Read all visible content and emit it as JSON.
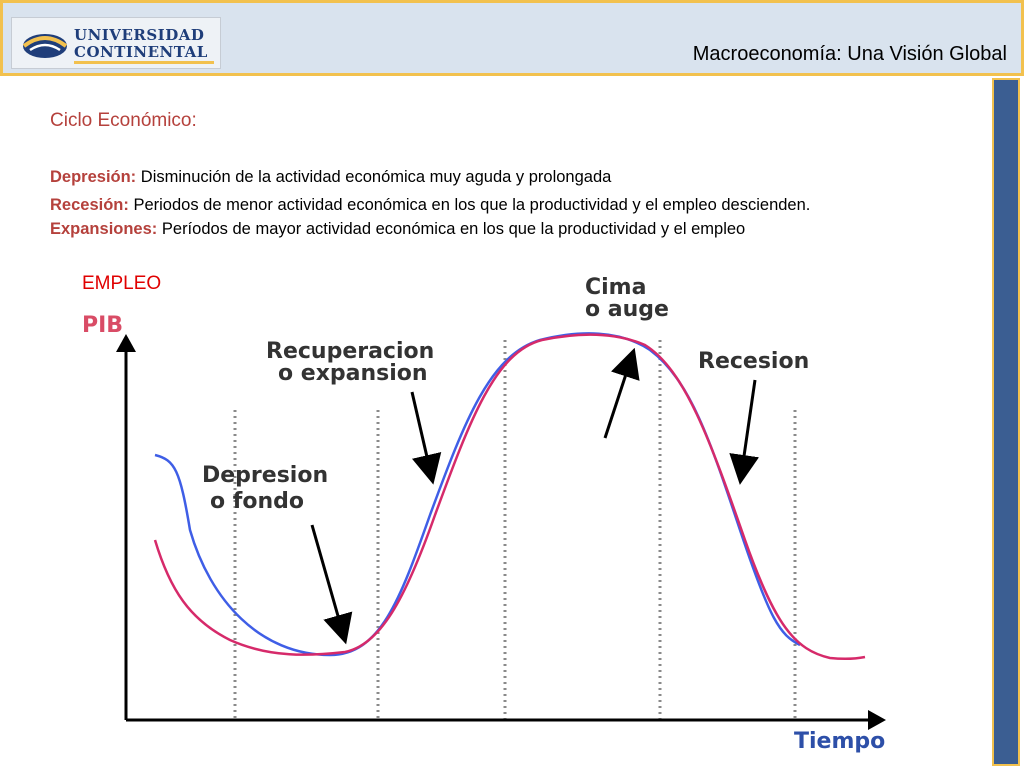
{
  "header": {
    "logo_line1": "UNIVERSIDAD",
    "logo_line2": "CONTINENTAL",
    "deck_title": "Macroeconomía:  Una Visión Global"
  },
  "content": {
    "section_title": "Ciclo Económico:",
    "definitions": [
      {
        "term": "Depresión:",
        "text": " Disminución de la actividad económica muy aguda y prolongada"
      },
      {
        "term": "Recesión:",
        "text": " Periodos de menor actividad económica en los que la productividad y el empleo descienden."
      },
      {
        "term": "Expansiones:",
        "text": "  Períodos de mayor actividad económica en los que la productividad y el empleo"
      }
    ],
    "empleo_label": "EMPLEO"
  },
  "diagram": {
    "y_axis_label": "PIB",
    "x_axis_label": "Tiempo",
    "phases": {
      "depresion_line1": "Depresion",
      "depresion_line2": "o fondo",
      "recuperacion_line1": "Recuperacion",
      "recuperacion_line2": "o expansion",
      "cima_line1": "Cima",
      "cima_line2": "o auge",
      "recesion": "Recesion"
    },
    "colors": {
      "pib_curve": "#d62a6a",
      "empleo_curve": "#3f5ee6",
      "axis": "#000000",
      "dotted_lines": "#8a8a8a",
      "term_red": "#b5413c",
      "empleo_red": "#e00000",
      "header_bg": "#d9e3ee",
      "accent_gold": "#f2c14e",
      "side_bar_blue": "#3b5e92"
    }
  }
}
